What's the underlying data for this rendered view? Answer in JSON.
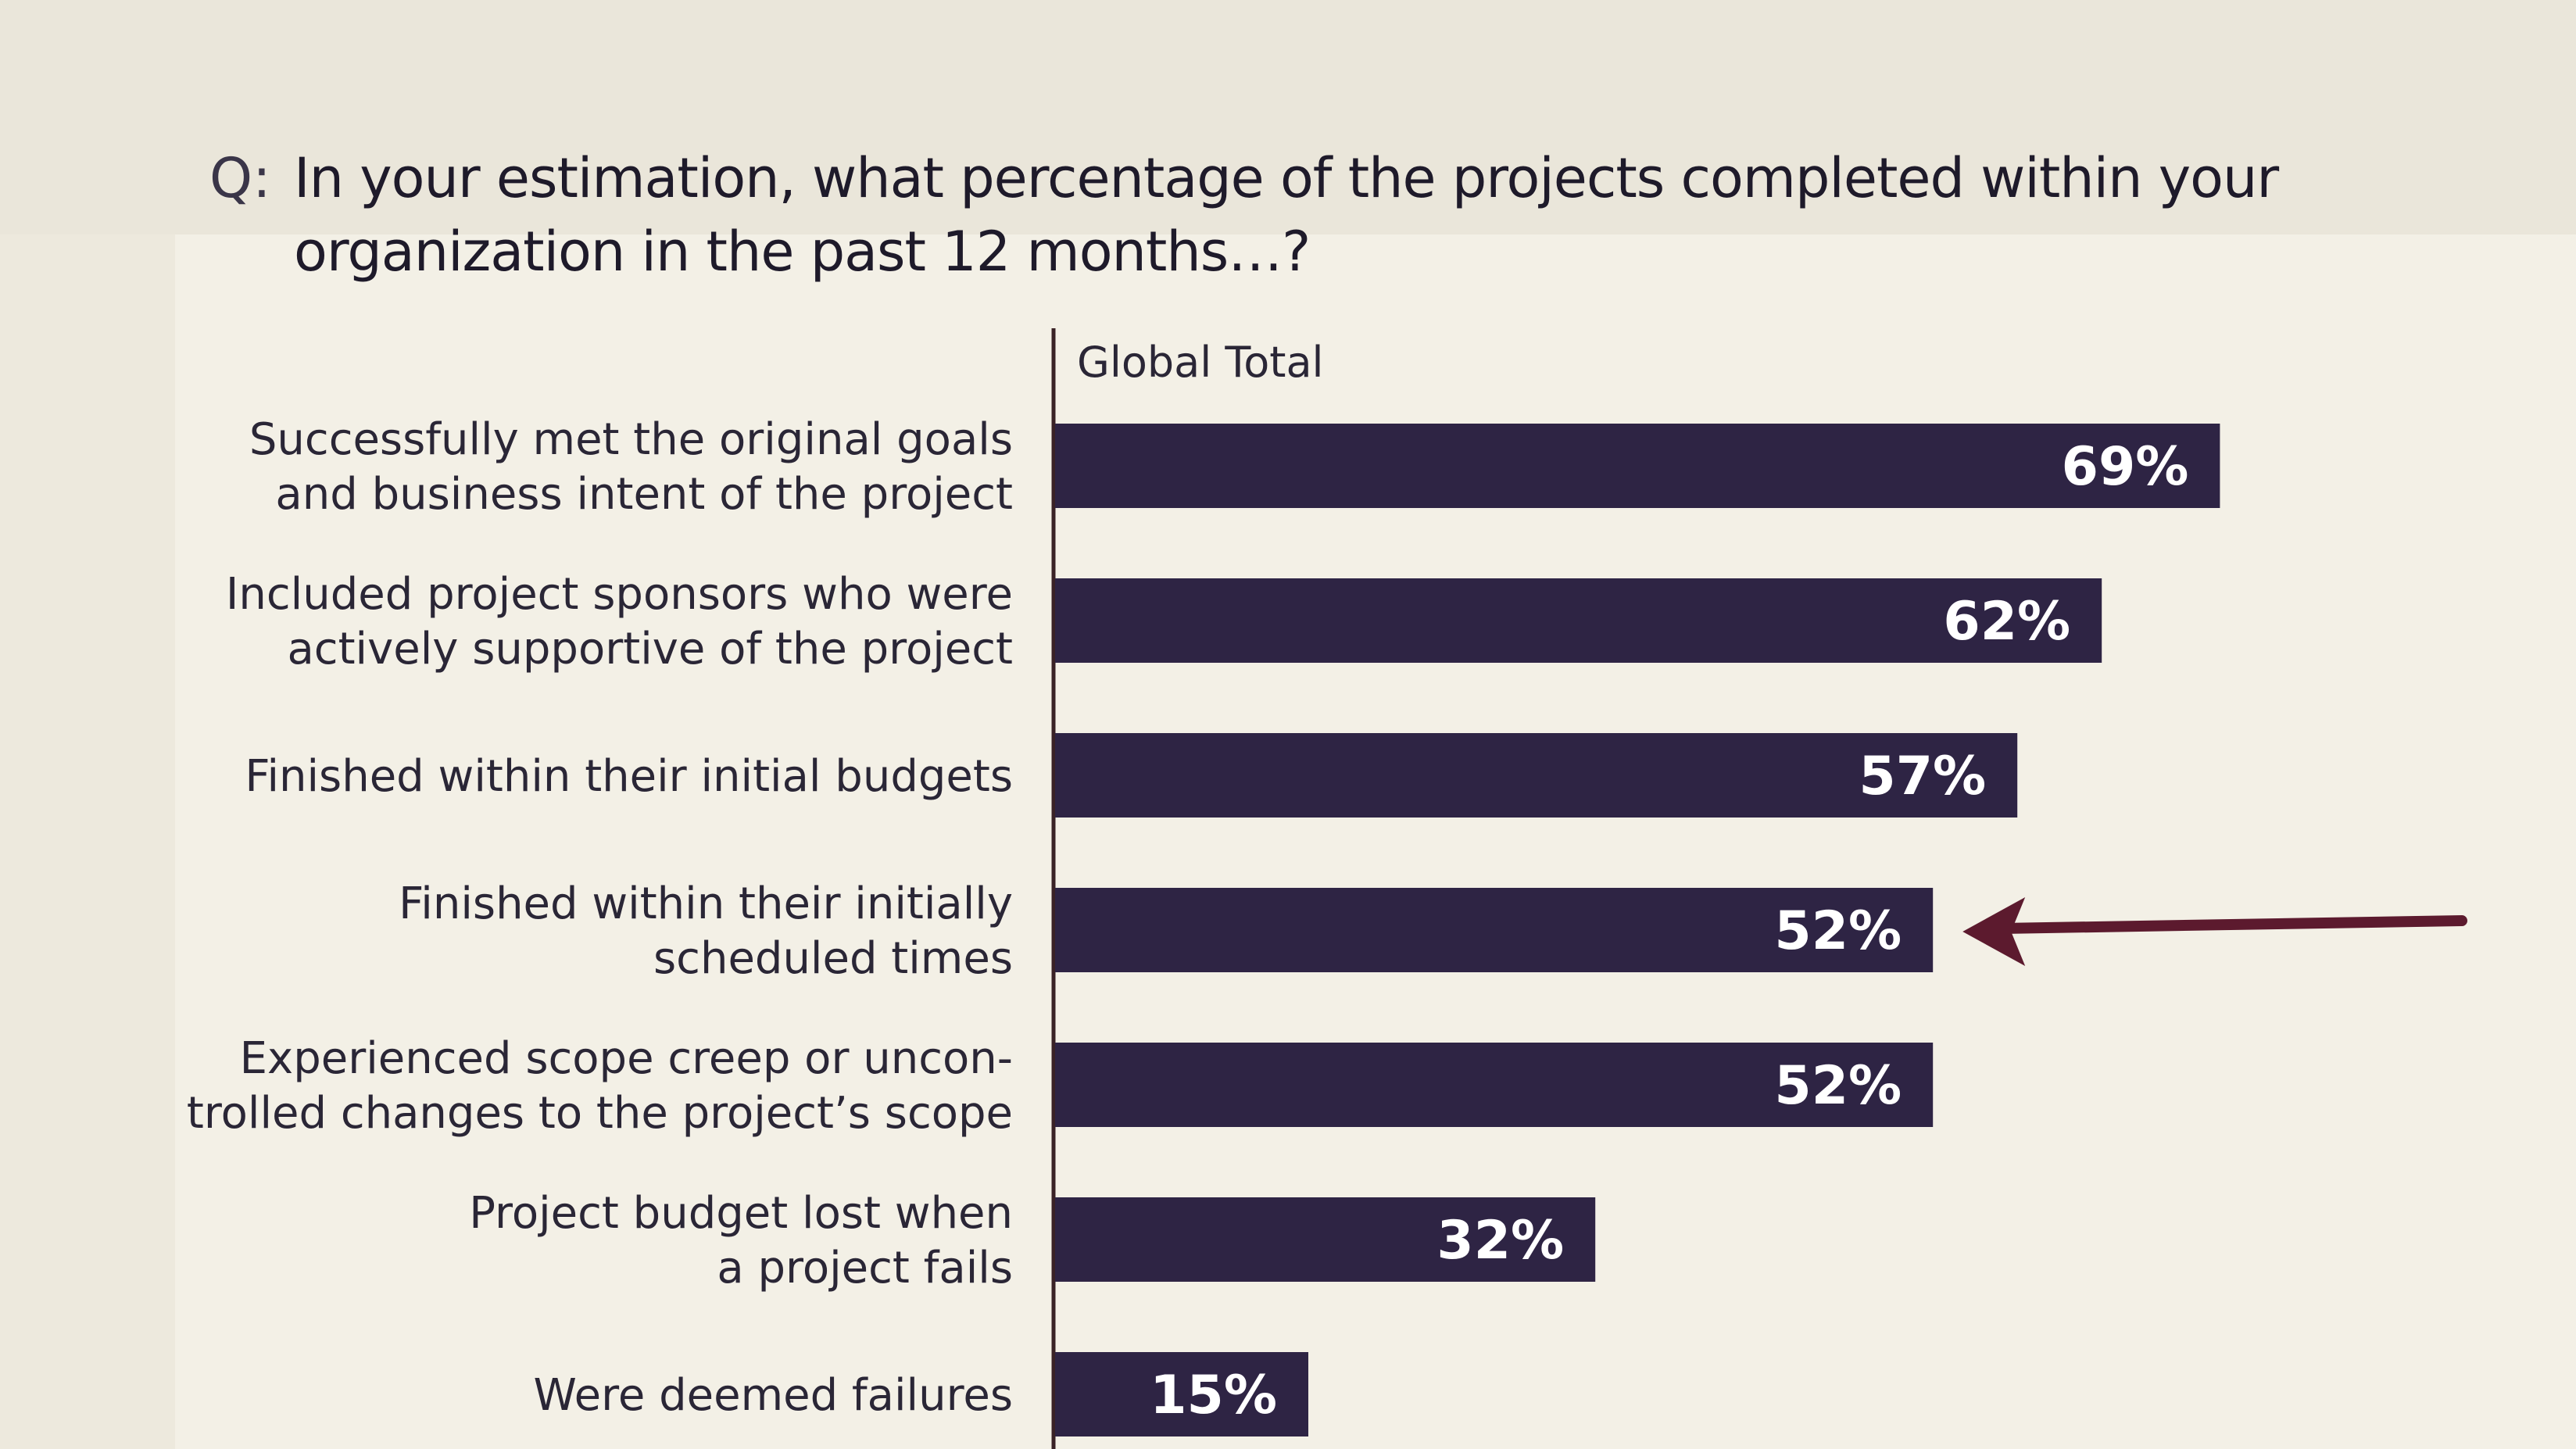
{
  "chart_data": {
    "type": "bar",
    "orientation": "horizontal",
    "question_prefix": "Q:",
    "title_lines": [
      "In your estimation, what percentage of the projects completed within your",
      "organization in the past 12 months…?"
    ],
    "series_name": "Global Total",
    "categories": [
      [
        "Successfully met the original goals",
        "and business intent of the project"
      ],
      [
        "Included project sponsors who were",
        "actively supportive of the project"
      ],
      [
        "Finished within their initial budgets"
      ],
      [
        "Finished within their initially",
        "scheduled times"
      ],
      [
        "Experienced scope creep or uncon-",
        "trolled changes to the project’s scope"
      ],
      [
        "Project budget lost when",
        "a project fails"
      ],
      [
        "Were deemed failures"
      ]
    ],
    "values": [
      69,
      62,
      57,
      52,
      52,
      32,
      15
    ],
    "value_labels": [
      "69%",
      "62%",
      "57%",
      "52%",
      "52%",
      "32%",
      "15%"
    ],
    "xlim": [
      0,
      100
    ],
    "highlighted_index": 3,
    "colors": {
      "bar": "#2e2444",
      "arrow": "#5c1a2e",
      "background": "#ede9dd"
    }
  }
}
